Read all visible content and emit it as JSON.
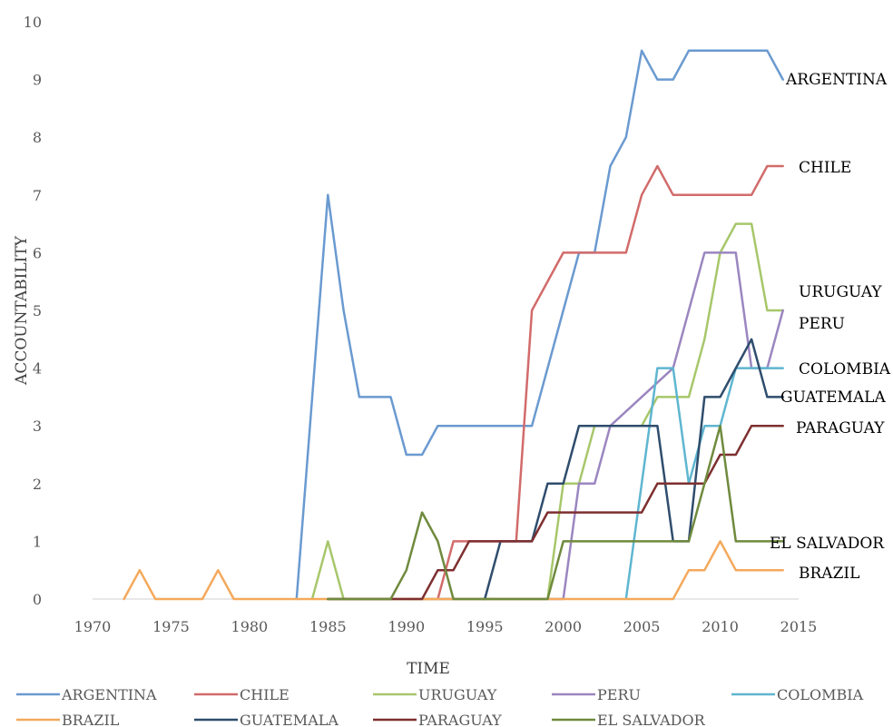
{
  "chart_data": {
    "type": "line",
    "xlabel": "TIME",
    "ylabel": "ACCOUNTABILITY",
    "xlim": [
      1970,
      2015
    ],
    "ylim": [
      0,
      10
    ],
    "x_ticks": [
      "1970",
      "1975",
      "1980",
      "1985",
      "1990",
      "1995",
      "2000",
      "2005",
      "2010",
      "2015"
    ],
    "y_ticks": [
      "0",
      "1",
      "2",
      "3",
      "4",
      "5",
      "6",
      "7",
      "8",
      "9",
      "10"
    ],
    "grid": false,
    "legend_position": "bottom",
    "series": [
      {
        "name": "ARGENTINA",
        "color": "#6a9ad0",
        "label": "ARGENTINA",
        "points": [
          [
            1983,
            0
          ],
          [
            1985,
            7
          ],
          [
            1986,
            5
          ],
          [
            1987,
            3.5
          ],
          [
            1989,
            3.5
          ],
          [
            1990,
            2.5
          ],
          [
            1991,
            2.5
          ],
          [
            1992,
            3
          ],
          [
            1998,
            3
          ],
          [
            2000,
            5
          ],
          [
            2001,
            6
          ],
          [
            2002,
            6
          ],
          [
            2003,
            7.5
          ],
          [
            2004,
            8
          ],
          [
            2005,
            9.5
          ],
          [
            2006,
            9
          ],
          [
            2007,
            9
          ],
          [
            2008,
            9.5
          ],
          [
            2013,
            9.5
          ],
          [
            2014,
            9
          ]
        ]
      },
      {
        "name": "CHILE",
        "color": "#d26b6b",
        "label": "CHILE",
        "points": [
          [
            1990,
            0
          ],
          [
            1992,
            0
          ],
          [
            1993,
            1
          ],
          [
            1997,
            1
          ],
          [
            1998,
            5
          ],
          [
            2000,
            6
          ],
          [
            2004,
            6
          ],
          [
            2005,
            7
          ],
          [
            2006,
            7.5
          ],
          [
            2007,
            7
          ],
          [
            2012,
            7
          ],
          [
            2013,
            7.5
          ],
          [
            2014,
            7.5
          ]
        ]
      },
      {
        "name": "URUGUAY",
        "color": "#a7c76b",
        "label": "URUGUAY",
        "points": [
          [
            1984,
            0
          ],
          [
            1985,
            1
          ],
          [
            1986,
            0
          ],
          [
            1999,
            0
          ],
          [
            2000,
            2
          ],
          [
            2001,
            2
          ],
          [
            2002,
            3
          ],
          [
            2005,
            3
          ],
          [
            2006,
            3.5
          ],
          [
            2008,
            3.5
          ],
          [
            2009,
            4.5
          ],
          [
            2010,
            6
          ],
          [
            2011,
            6.5
          ],
          [
            2012,
            6.5
          ],
          [
            2013,
            5
          ],
          [
            2014,
            5
          ]
        ]
      },
      {
        "name": "PERU",
        "color": "#9b86c0",
        "label": "PERU",
        "points": [
          [
            1992,
            0
          ],
          [
            2000,
            0
          ],
          [
            2001,
            2
          ],
          [
            2002,
            2
          ],
          [
            2003,
            3
          ],
          [
            2007,
            4
          ],
          [
            2009,
            6
          ],
          [
            2011,
            6
          ],
          [
            2012,
            4
          ],
          [
            2013,
            4
          ],
          [
            2014,
            5
          ]
        ]
      },
      {
        "name": "COLOMBIA",
        "color": "#5fb6d0",
        "label": "COLOMBIA",
        "points": [
          [
            2004,
            0
          ],
          [
            2006,
            4
          ],
          [
            2007,
            4
          ],
          [
            2008,
            2
          ],
          [
            2009,
            3
          ],
          [
            2010,
            3
          ],
          [
            2011,
            4
          ],
          [
            2014,
            4
          ]
        ]
      },
      {
        "name": "BRAZIL",
        "color": "#f4a95c",
        "label": "BRAZIL",
        "points": [
          [
            1972,
            0
          ],
          [
            1973,
            0.5
          ],
          [
            1974,
            0
          ],
          [
            1977,
            0
          ],
          [
            1978,
            0.5
          ],
          [
            1979,
            0
          ],
          [
            2007,
            0
          ],
          [
            2008,
            0.5
          ],
          [
            2009,
            0.5
          ],
          [
            2010,
            1
          ],
          [
            2011,
            0.5
          ],
          [
            2014,
            0.5
          ]
        ]
      },
      {
        "name": "GUATEMALA",
        "color": "#2f4d6d",
        "label": "GUATEMALA",
        "points": [
          [
            1995,
            0
          ],
          [
            1996,
            1
          ],
          [
            1998,
            1
          ],
          [
            1999,
            2
          ],
          [
            2000,
            2
          ],
          [
            2001,
            3
          ],
          [
            2006,
            3
          ],
          [
            2007,
            1
          ],
          [
            2008,
            1
          ],
          [
            2009,
            3.5
          ],
          [
            2010,
            3.5
          ],
          [
            2011,
            4
          ],
          [
            2012,
            4.5
          ],
          [
            2013,
            3.5
          ],
          [
            2014,
            3.5
          ]
        ]
      },
      {
        "name": "PARAGUAY",
        "color": "#7e2f30",
        "label": "PARAGUAY",
        "points": [
          [
            1985,
            0
          ],
          [
            1991,
            0
          ],
          [
            1992,
            0.5
          ],
          [
            1993,
            0.5
          ],
          [
            1994,
            1
          ],
          [
            1998,
            1
          ],
          [
            1999,
            1.5
          ],
          [
            2005,
            1.5
          ],
          [
            2006,
            2
          ],
          [
            2009,
            2
          ],
          [
            2010,
            2.5
          ],
          [
            2011,
            2.5
          ],
          [
            2012,
            3
          ],
          [
            2014,
            3
          ]
        ]
      },
      {
        "name": "EL SALVADOR",
        "color": "#6f8a3d",
        "label": "EL SALVADOR",
        "points": [
          [
            1985,
            0
          ],
          [
            1989,
            0
          ],
          [
            1990,
            0.5
          ],
          [
            1991,
            1.5
          ],
          [
            1992,
            1
          ],
          [
            1993,
            0
          ],
          [
            1999,
            0
          ],
          [
            2000,
            1
          ],
          [
            2007,
            1
          ],
          [
            2008,
            1
          ],
          [
            2009,
            2
          ],
          [
            2010,
            3
          ],
          [
            2011,
            1
          ],
          [
            2014,
            1
          ]
        ]
      }
    ]
  }
}
